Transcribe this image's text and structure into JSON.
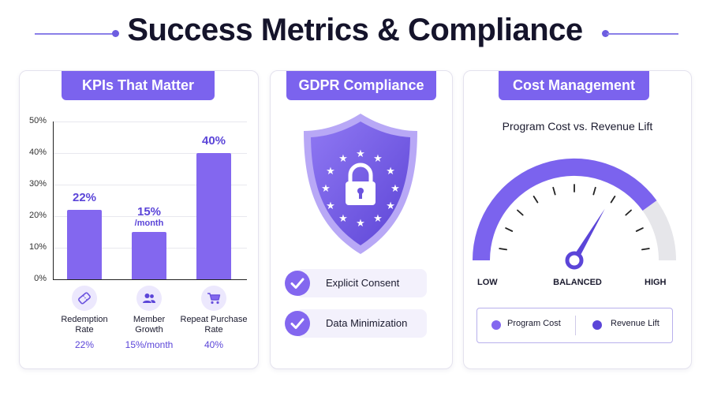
{
  "title": "Success Metrics & Compliance",
  "colors": {
    "accent": "#7b63ee",
    "bar": "#8367ef",
    "text_accent": "#5b45d8",
    "gauge_track": "#e6e6ea"
  },
  "kpi": {
    "heading": "KPIs That Matter",
    "chart_data": {
      "type": "bar",
      "categories": [
        "Redemption Rate",
        "Member Growth",
        "Repeat Purchase Rate"
      ],
      "values": [
        22,
        15,
        40
      ],
      "data_labels": [
        "22%",
        "15%",
        "40%"
      ],
      "data_sublabels": [
        "",
        "/month",
        ""
      ],
      "ylim": [
        0,
        50
      ],
      "yticks": [
        "0%",
        "10%",
        "20%",
        "30%",
        "40%",
        "50%"
      ],
      "grid": true,
      "category_icons": [
        "ticket-icon",
        "users-icon",
        "cart-icon"
      ],
      "category_lines": [
        [
          "Redemption",
          "Rate"
        ],
        [
          "Member",
          "Growth"
        ],
        [
          "Repeat Purchase",
          "Rate"
        ]
      ],
      "category_values": [
        "22%",
        "15%/month",
        "40%"
      ]
    }
  },
  "gdpr": {
    "heading": "GDPR Compliance",
    "icon": "eu-shield-lock-icon",
    "items": [
      {
        "label": "Explicit Consent",
        "icon": "check-icon"
      },
      {
        "label": "Data Minimization",
        "icon": "check-icon"
      }
    ]
  },
  "cost": {
    "heading": "Cost Management",
    "gauge_title": "Program Cost vs. Revenue Lift",
    "scale_labels": {
      "low": "LOW",
      "mid": "BALANCED",
      "high": "HIGH"
    },
    "needle_fraction": 0.67,
    "fill_fraction": 0.8,
    "legend": [
      {
        "label": "Program Cost",
        "color": "#8367ef"
      },
      {
        "label": "Revenue Lift",
        "color": "#5b45d8"
      }
    ]
  }
}
